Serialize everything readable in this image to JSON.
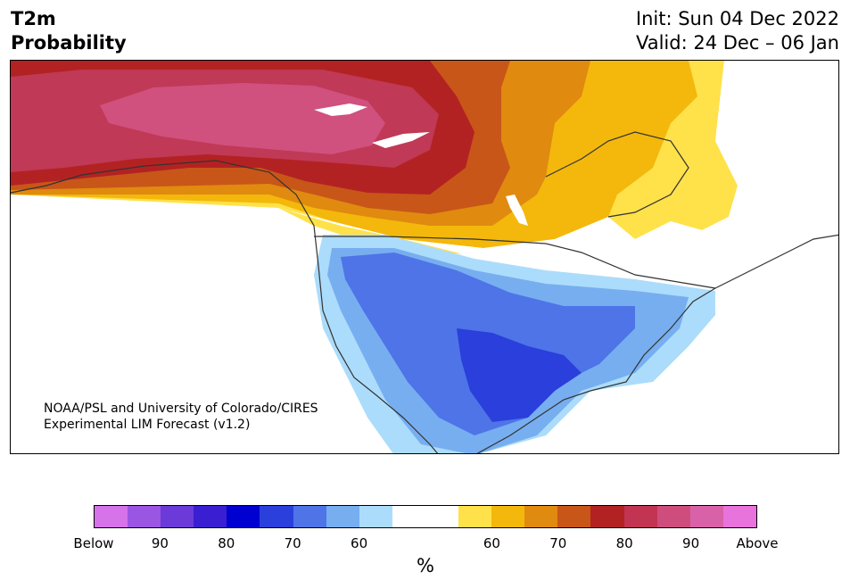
{
  "header": {
    "title_line1": "T2m",
    "title_line2": "Probability",
    "init": "Init: Sun 04 Dec 2022",
    "valid": "Valid: 24 Dec – 06 Jan"
  },
  "credit": {
    "line1": "NOAA/PSL and University of Colorado/CIRES",
    "line2": "Experimental LIM Forecast (v1.2)"
  },
  "colorbar": {
    "colors": [
      "#d672ea",
      "#9b55e3",
      "#6b3ad8",
      "#3a1ed2",
      "#0000d0",
      "#2a3fdb",
      "#4e74e8",
      "#77aef0",
      "#acdcfb",
      "#ffffff",
      "#ffffff",
      "#ffe14a",
      "#f3b80b",
      "#e08a10",
      "#c85618",
      "#b32222",
      "#c23452",
      "#cf4d7c",
      "#d961a8",
      "#e873dd"
    ],
    "labels": [
      "Below",
      "90",
      "80",
      "70",
      "60",
      "60",
      "70",
      "80",
      "90",
      "Above"
    ],
    "unit": "%"
  },
  "map": {
    "colors": {
      "coast": "#333333",
      "water": "#ffffff",
      "above_90": "#d0507e",
      "above_80": "#c03956",
      "above_75": "#b32222",
      "above_70": "#c85618",
      "above_65": "#e08a10",
      "above_60": "#f3b80b",
      "above_55": "#ffe14a",
      "below_55": "#acdcfb",
      "below_60": "#77aef0",
      "below_65": "#4e74e8",
      "below_70": "#2a3fdb"
    }
  }
}
